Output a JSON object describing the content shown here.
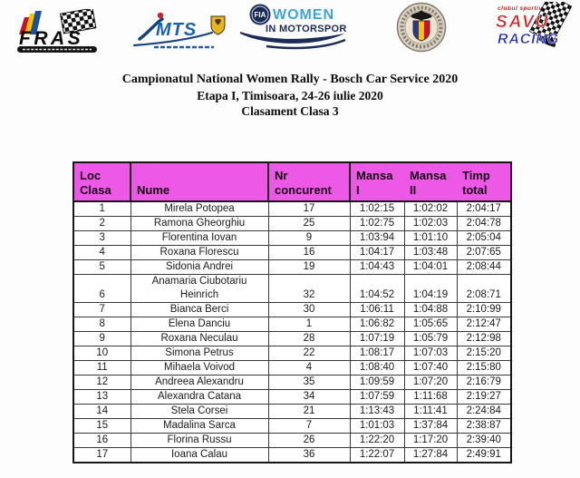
{
  "colors": {
    "header_bg": "#ee58e6"
  },
  "header_logos": {
    "fras": {
      "text": "FRAS"
    },
    "mts": {
      "text": "MTS"
    },
    "fia": {
      "badge": "FIA",
      "line1": "WOMEN",
      "line2": "IN MOTORSPORT"
    },
    "savu": {
      "top": "clubul sportiv",
      "line1": "SAVU",
      "line2": "RACING"
    }
  },
  "title": {
    "line1": "Campionatul National Women Rally - Bosch Car Service 2020",
    "line2": "Etapa I, Timisoara, 24-26 iulie 2020",
    "line3": "Clasament Clasa 3"
  },
  "table": {
    "headers": [
      {
        "line1": "Loc",
        "line2": "Clasa"
      },
      {
        "line1": "",
        "line2": "Nume"
      },
      {
        "line1": "Nr",
        "line2": "concurent"
      },
      {
        "line1": "Mansa",
        "line2": "I"
      },
      {
        "line1": "Mansa",
        "line2": "II"
      },
      {
        "line1": "Timp",
        "line2": "total"
      }
    ],
    "rows": [
      {
        "loc": "1",
        "nume": "Mirela Potopea",
        "nr": "17",
        "mansa1": "1:02:15",
        "mansa2": "1:02:02",
        "timp": "2:04:17"
      },
      {
        "loc": "2",
        "nume": "Ramona Gheorghiu",
        "nr": "25",
        "mansa1": "1:02:75",
        "mansa2": "1:02:03",
        "timp": "2:04:78"
      },
      {
        "loc": "3",
        "nume": "Florentina Iovan",
        "nr": "9",
        "mansa1": "1:03:94",
        "mansa2": "1:01:10",
        "timp": "2:05:04"
      },
      {
        "loc": "4",
        "nume": "Roxana Florescu",
        "nr": "16",
        "mansa1": "1:04:17",
        "mansa2": "1:03:48",
        "timp": "2:07:65"
      },
      {
        "loc": "5",
        "nume": "Sidonia Andrei",
        "nr": "19",
        "mansa1": "1:04:43",
        "mansa2": "1:04:01",
        "timp": "2:08:44"
      },
      {
        "loc": "6",
        "nume": "Anamaria Ciubotariu Heinrich",
        "nr": "32",
        "mansa1": "1:04:52",
        "mansa2": "1:04:19",
        "timp": "2:08:71"
      },
      {
        "loc": "7",
        "nume": "Bianca Berci",
        "nr": "30",
        "mansa1": "1:06:11",
        "mansa2": "1:04:88",
        "timp": "2:10:99"
      },
      {
        "loc": "8",
        "nume": "Elena Danciu",
        "nr": "1",
        "mansa1": "1:06:82",
        "mansa2": "1:05:65",
        "timp": "2:12:47"
      },
      {
        "loc": "9",
        "nume": "Roxana Neculau",
        "nr": "28",
        "mansa1": "1:07:19",
        "mansa2": "1:05:79",
        "timp": "2:12:98"
      },
      {
        "loc": "10",
        "nume": "Simona Petrus",
        "nr": "22",
        "mansa1": "1:08:17",
        "mansa2": "1:07:03",
        "timp": "2:15:20"
      },
      {
        "loc": "11",
        "nume": "Mihaela Voivod",
        "nr": "4",
        "mansa1": "1:08:40",
        "mansa2": "1:07:40",
        "timp": "2:15:80"
      },
      {
        "loc": "12",
        "nume": "Andreea Alexandru",
        "nr": "35",
        "mansa1": "1:09:59",
        "mansa2": "1:07:20",
        "timp": "2:16:79"
      },
      {
        "loc": "13",
        "nume": "Alexandra Catana",
        "nr": "34",
        "mansa1": "1:07:59",
        "mansa2": "1:11:68",
        "timp": "2:19:27"
      },
      {
        "loc": "14",
        "nume": "Stela Corsei",
        "nr": "21",
        "mansa1": "1:13:43",
        "mansa2": "1:11:41",
        "timp": "2:24:84"
      },
      {
        "loc": "15",
        "nume": "Madalina Sarca",
        "nr": "7",
        "mansa1": "1:01:03",
        "mansa2": "1:37:84",
        "timp": "2:38:87"
      },
      {
        "loc": "16",
        "nume": "Florina Russu",
        "nr": "26",
        "mansa1": "1:22:20",
        "mansa2": "1:17:20",
        "timp": "2:39:40"
      },
      {
        "loc": "17",
        "nume": "Ioana Calau",
        "nr": "36",
        "mansa1": "1:22:07",
        "mansa2": "1:27:84",
        "timp": "2:49:91"
      }
    ]
  }
}
